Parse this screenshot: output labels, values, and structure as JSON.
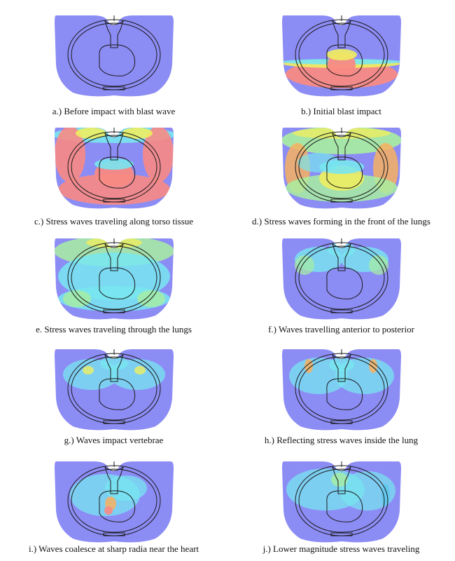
{
  "colors": {
    "tissue": "#8c8cf5",
    "outline": "#1a1a1a",
    "high": "#f88a84",
    "mid_high": "#f7b060",
    "mid": "#eeee60",
    "mid_low": "#a8eea0",
    "low": "#78e6f0",
    "low2": "#5ec8ef"
  },
  "panels": [
    {
      "id": "a",
      "caption": "a.) Before impact with blast wave"
    },
    {
      "id": "b",
      "caption": "b.)  Initial blast impact"
    },
    {
      "id": "c",
      "caption": "c.) Stress waves traveling along torso tissue"
    },
    {
      "id": "d",
      "caption": "d.) Stress waves forming in the front of the lungs"
    },
    {
      "id": "e",
      "caption": "e.  Stress waves traveling through the lungs"
    },
    {
      "id": "f",
      "caption": "f.) Waves travelling anterior to posterior"
    },
    {
      "id": "g",
      "caption": "g.)  Waves impact vertebrae"
    },
    {
      "id": "h",
      "caption": "h.)  Reflecting stress waves inside the lung"
    },
    {
      "id": "i",
      "caption": "i.)  Waves coalesce at sharp radia near the heart"
    },
    {
      "id": "j",
      "caption": "j.)  Lower magnitude stress waves traveling"
    }
  ]
}
